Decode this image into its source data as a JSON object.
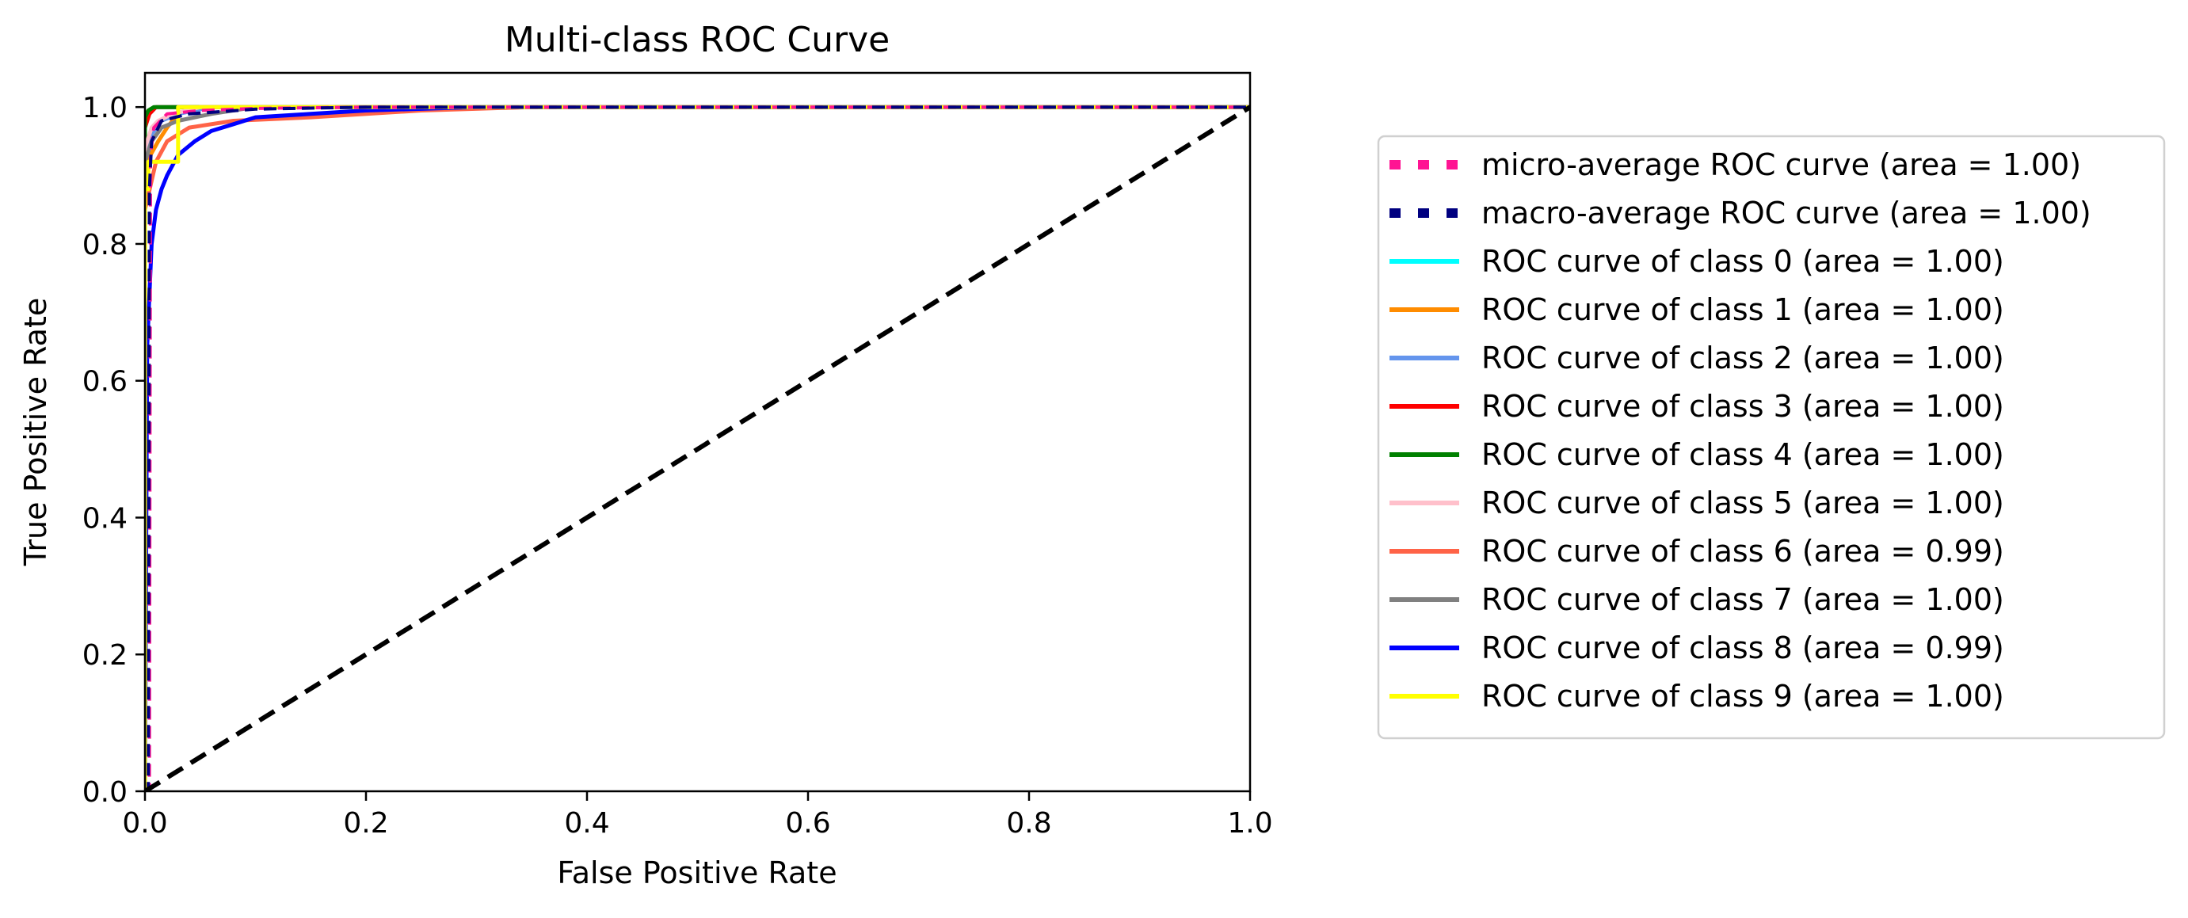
{
  "chart_data": {
    "type": "line",
    "title": "Multi-class ROC Curve",
    "xlabel": "False Positive Rate",
    "ylabel": "True Positive Rate",
    "xlim": [
      0.0,
      1.0
    ],
    "ylim": [
      0.0,
      1.05
    ],
    "xticks": [
      "0.0",
      "0.2",
      "0.4",
      "0.6",
      "0.8",
      "1.0"
    ],
    "yticks": [
      "0.0",
      "0.2",
      "0.4",
      "0.6",
      "0.8",
      "1.0"
    ],
    "grid": false,
    "legend_position": "outside-right",
    "series": [
      {
        "name": "micro-average ROC curve (area = 1.00)",
        "color": "#ff1493",
        "style": "dotted",
        "x": [
          0.0,
          0.004,
          0.005,
          0.008,
          0.02,
          0.05,
          0.1,
          0.2,
          1.0
        ],
        "y": [
          0.0,
          0.0,
          0.93,
          0.97,
          0.99,
          0.995,
          0.998,
          1.0,
          1.0
        ]
      },
      {
        "name": "macro-average ROC curve (area = 1.00)",
        "color": "#000080",
        "style": "dotted",
        "x": [
          0.0,
          0.003,
          0.004,
          0.006,
          0.015,
          0.04,
          0.1,
          0.2,
          1.0
        ],
        "y": [
          0.0,
          0.0,
          0.88,
          0.95,
          0.98,
          0.99,
          0.997,
          1.0,
          1.0
        ]
      },
      {
        "name": "ROC curve of class 0 (area = 1.00)",
        "color": "#00ffff",
        "style": "solid",
        "x": [
          0.0,
          0.0,
          0.004,
          0.01,
          0.02,
          1.0
        ],
        "y": [
          0.0,
          0.97,
          0.99,
          1.0,
          1.0,
          1.0
        ]
      },
      {
        "name": "ROC curve of class 1 (area = 1.00)",
        "color": "#ff8c00",
        "style": "solid",
        "x": [
          0.0,
          0.0,
          0.005,
          0.012,
          0.02,
          0.03,
          0.05,
          1.0
        ],
        "y": [
          0.0,
          0.9,
          0.93,
          0.95,
          0.97,
          0.99,
          1.0,
          1.0
        ]
      },
      {
        "name": "ROC curve of class 2 (area = 1.00)",
        "color": "#6495ed",
        "style": "solid",
        "x": [
          0.0,
          0.0,
          0.006,
          0.015,
          0.03,
          0.06,
          1.0
        ],
        "y": [
          0.0,
          0.93,
          0.96,
          0.98,
          0.99,
          1.0,
          1.0
        ]
      },
      {
        "name": "ROC curve of class 3 (area = 1.00)",
        "color": "#ff0000",
        "style": "solid",
        "x": [
          0.0,
          0.0,
          0.004,
          0.01,
          0.02,
          1.0
        ],
        "y": [
          0.0,
          0.97,
          0.99,
          1.0,
          1.0,
          1.0
        ]
      },
      {
        "name": "ROC curve of class 4 (area = 1.00)",
        "color": "#008000",
        "style": "solid",
        "x": [
          0.0,
          0.0,
          0.003,
          0.008,
          1.0
        ],
        "y": [
          0.0,
          0.985,
          0.995,
          1.0,
          1.0
        ]
      },
      {
        "name": "ROC curve of class 5 (area = 1.00)",
        "color": "#ffc0cb",
        "style": "solid",
        "x": [
          0.0,
          0.0,
          0.006,
          0.012,
          0.025,
          0.05,
          1.0
        ],
        "y": [
          0.0,
          0.94,
          0.97,
          0.98,
          0.99,
          1.0,
          1.0
        ]
      },
      {
        "name": "ROC curve of class 6 (area = 0.99)",
        "color": "#ff6347",
        "style": "solid",
        "x": [
          0.0,
          0.0,
          0.01,
          0.02,
          0.04,
          0.08,
          0.15,
          0.25,
          0.35,
          1.0
        ],
        "y": [
          0.0,
          0.85,
          0.92,
          0.95,
          0.97,
          0.98,
          0.985,
          0.995,
          1.0,
          1.0
        ]
      },
      {
        "name": "ROC curve of class 7 (area = 1.00)",
        "color": "#808080",
        "style": "solid",
        "x": [
          0.0,
          0.0,
          0.006,
          0.015,
          0.03,
          0.06,
          0.1,
          1.0
        ],
        "y": [
          0.0,
          0.92,
          0.95,
          0.97,
          0.98,
          0.99,
          1.0,
          1.0
        ]
      },
      {
        "name": "ROC curve of class 8 (area = 0.99)",
        "color": "#0000ff",
        "style": "solid",
        "x": [
          0.0,
          0.002,
          0.006,
          0.01,
          0.015,
          0.02,
          0.03,
          0.045,
          0.06,
          0.08,
          0.1,
          0.15,
          0.2,
          0.3,
          1.0
        ],
        "y": [
          0.0,
          0.65,
          0.8,
          0.85,
          0.88,
          0.9,
          0.93,
          0.95,
          0.965,
          0.975,
          0.985,
          0.99,
          0.995,
          1.0,
          1.0
        ]
      },
      {
        "name": "ROC curve of class 9 (area = 1.00)",
        "color": "#ffff00",
        "style": "solid",
        "x": [
          0.0,
          0.0,
          0.003,
          0.003,
          0.03,
          0.03,
          1.0
        ],
        "y": [
          0.0,
          0.88,
          0.88,
          0.92,
          0.92,
          1.0,
          1.0
        ]
      }
    ],
    "reference_line": {
      "x": [
        0.0,
        1.0
      ],
      "y": [
        0.0,
        1.0
      ],
      "color": "#000000",
      "style": "dashed"
    }
  }
}
